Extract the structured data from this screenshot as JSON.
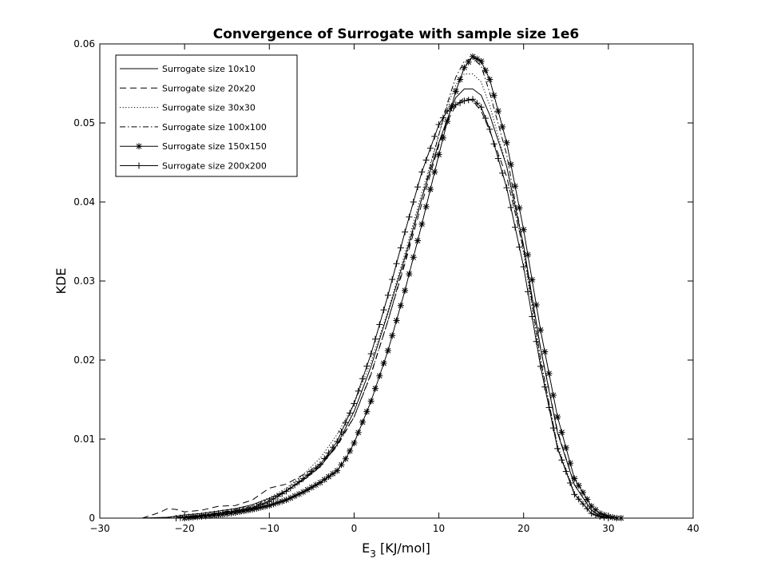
{
  "chart_data": {
    "type": "line",
    "title": "Convergence of Surrogate with sample size 1e6",
    "xlabel": "E",
    "xlabel_subscript": "3",
    "xlabel_unit": " [KJ/mol]",
    "ylabel": "KDE",
    "xlim": [
      -30,
      40
    ],
    "ylim": [
      0,
      0.06
    ],
    "xticks": [
      -30,
      -20,
      -10,
      0,
      10,
      20,
      30,
      40
    ],
    "xtick_labels": [
      "−30",
      "−20",
      "−10",
      "0",
      "10",
      "20",
      "30",
      "40"
    ],
    "yticks": [
      0,
      0.01,
      0.02,
      0.03,
      0.04,
      0.05,
      0.06
    ],
    "ytick_labels": [
      "0",
      "0.01",
      "0.02",
      "0.03",
      "0.04",
      "0.05",
      "0.06"
    ],
    "grid": false,
    "legend_position": "top-left",
    "series_color": "#000000",
    "series": [
      {
        "name": "Surrogate size 10x10",
        "linestyle": "solid",
        "marker": "none",
        "x": [
          -25,
          -22,
          -20,
          -18,
          -16,
          -14,
          -12,
          -10,
          -8,
          -6,
          -4,
          -2,
          0,
          2,
          4,
          6,
          8,
          10,
          11,
          12,
          13,
          14,
          15,
          16,
          18,
          20,
          22,
          24,
          26,
          28,
          29,
          30
        ],
        "y": [
          0,
          0.0001,
          0.0004,
          0.0006,
          0.0009,
          0.0012,
          0.0017,
          0.0025,
          0.0035,
          0.0048,
          0.0065,
          0.0093,
          0.0135,
          0.0192,
          0.026,
          0.033,
          0.0405,
          0.0475,
          0.0505,
          0.0532,
          0.0543,
          0.0543,
          0.0535,
          0.051,
          0.0445,
          0.0345,
          0.0215,
          0.0108,
          0.0042,
          0.001,
          0.0003,
          0
        ]
      },
      {
        "name": "Surrogate size 20x20",
        "linestyle": "dashed",
        "marker": "none",
        "x": [
          -25,
          -23,
          -22,
          -21,
          -20,
          -18,
          -16,
          -14,
          -12,
          -10,
          -8,
          -6,
          -4,
          -2,
          0,
          2,
          4,
          6,
          8,
          10,
          11,
          12,
          13,
          14,
          15,
          16,
          18,
          20,
          22,
          24,
          26,
          28,
          29,
          30
        ],
        "y": [
          0,
          0.0007,
          0.0012,
          0.0011,
          0.0008,
          0.001,
          0.0015,
          0.0016,
          0.0023,
          0.0038,
          0.0043,
          0.0055,
          0.0068,
          0.0093,
          0.0128,
          0.0182,
          0.025,
          0.0322,
          0.0398,
          0.0472,
          0.0502,
          0.0522,
          0.0532,
          0.0528,
          0.0515,
          0.049,
          0.0432,
          0.034,
          0.0215,
          0.011,
          0.0042,
          0.001,
          0.0003,
          0
        ]
      },
      {
        "name": "Surrogate size 30x30",
        "linestyle": "dotted",
        "marker": "none",
        "x": [
          -25,
          -22,
          -20,
          -18,
          -16,
          -14,
          -12,
          -10,
          -8,
          -6,
          -4,
          -2,
          0,
          2,
          4,
          6,
          8,
          10,
          11,
          12,
          13,
          14,
          15,
          16,
          18,
          20,
          22,
          24,
          26,
          28,
          29,
          30
        ],
        "y": [
          0,
          0.0001,
          0.0002,
          0.0004,
          0.0007,
          0.0011,
          0.0017,
          0.0026,
          0.0038,
          0.0055,
          0.0076,
          0.0106,
          0.0145,
          0.0198,
          0.0262,
          0.0335,
          0.0412,
          0.0485,
          0.0522,
          0.0548,
          0.0562,
          0.0562,
          0.0552,
          0.0522,
          0.0445,
          0.0335,
          0.0198,
          0.0092,
          0.0032,
          0.0006,
          0.0001,
          0
        ]
      },
      {
        "name": "Surrogate size 100x100",
        "linestyle": "dashdot",
        "marker": "none",
        "x": [
          -25,
          -22,
          -20,
          -18,
          -16,
          -14,
          -12,
          -10,
          -8,
          -6,
          -4,
          -2,
          0,
          2,
          4,
          6,
          8,
          10,
          11,
          12,
          13,
          14,
          15,
          16,
          18,
          20,
          22,
          24,
          26,
          28,
          29,
          30
        ],
        "y": [
          0,
          0.0001,
          0.0002,
          0.0004,
          0.0007,
          0.001,
          0.0015,
          0.0023,
          0.0034,
          0.0049,
          0.0066,
          0.0091,
          0.0128,
          0.0183,
          0.025,
          0.0325,
          0.0405,
          0.0485,
          0.0525,
          0.0558,
          0.0578,
          0.0582,
          0.0572,
          0.0538,
          0.046,
          0.0342,
          0.0202,
          0.009,
          0.003,
          0.0006,
          0.0001,
          0
        ]
      },
      {
        "name": "Surrogate size 150x150",
        "linestyle": "solid",
        "marker": "asterisk",
        "x": [
          -20,
          -18,
          -16,
          -14,
          -12,
          -10,
          -8,
          -6,
          -4,
          -2,
          -1,
          0,
          2,
          4,
          6,
          8,
          10,
          11,
          12,
          13,
          14,
          15,
          16,
          18,
          20,
          22,
          24,
          26,
          28,
          29,
          30,
          31,
          31.5
        ],
        "y": [
          0,
          0.0002,
          0.0004,
          0.0007,
          0.0011,
          0.0016,
          0.0023,
          0.0033,
          0.0045,
          0.006,
          0.0075,
          0.0095,
          0.0148,
          0.0212,
          0.0288,
          0.0372,
          0.046,
          0.0502,
          0.054,
          0.057,
          0.0584,
          0.0578,
          0.0555,
          0.0475,
          0.0365,
          0.0238,
          0.0128,
          0.005,
          0.0015,
          0.0006,
          0.0002,
          0,
          0
        ]
      },
      {
        "name": "Surrogate size 200x200",
        "linestyle": "solid",
        "marker": "plus",
        "x": [
          -21,
          -18,
          -16,
          -14,
          -12,
          -10,
          -8,
          -6,
          -4,
          -2,
          0,
          2,
          4,
          6,
          8,
          10,
          11,
          12,
          13,
          14,
          15,
          16,
          18,
          20,
          22,
          24,
          26,
          28,
          29,
          30
        ],
        "y": [
          0,
          0.0003,
          0.0006,
          0.0009,
          0.0013,
          0.0021,
          0.0034,
          0.005,
          0.0068,
          0.0097,
          0.0145,
          0.0208,
          0.0282,
          0.0362,
          0.0438,
          0.0498,
          0.0515,
          0.0523,
          0.0528,
          0.053,
          0.052,
          0.0492,
          0.0418,
          0.0318,
          0.0192,
          0.0088,
          0.003,
          0.0006,
          0.0002,
          0
        ]
      }
    ]
  }
}
